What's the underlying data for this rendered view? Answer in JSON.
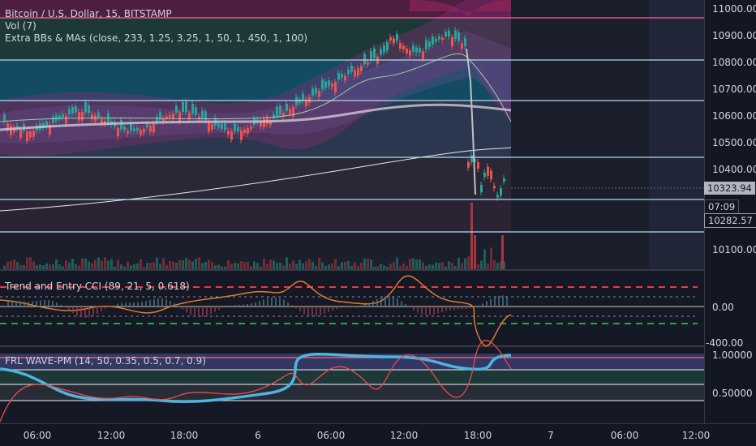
{
  "main": {
    "title": "Bitcoin / U.S. Dollar, 15, BITSTAMP",
    "vol_label": "Vol (7)",
    "indicator_label": "Extra BBs & MAs (close, 233, 1.25, 3.25, 1, 50, 1, 450, 1, 100)"
  },
  "price_axis": {
    "ticks": [
      "11000.00",
      "10900.00",
      "10800.00",
      "10700.00",
      "10600.00",
      "10500.00",
      "10400.00",
      "10100.00"
    ],
    "current_price": "10323.94",
    "countdown": "07:09",
    "alt_price": "10282.57"
  },
  "cci": {
    "label": "Trend and Entry CCI (89, 21, 5, 0.618)",
    "ticks": [
      "0.00",
      "-400.00"
    ]
  },
  "frl": {
    "label": "FRL WAVE-PM (14, 50, 0.35, 0.5, 0.7, 0.9)",
    "ticks": [
      "1.00000",
      "0.50000"
    ]
  },
  "time_axis": {
    "labels": [
      "06:00",
      "12:00",
      "18:00",
      "6",
      "06:00",
      "12:00",
      "18:00",
      "7",
      "06:00",
      "12:00"
    ]
  },
  "colors": {
    "background": "#131722",
    "candle_up": "#26a69a",
    "candle_down": "#ef5350",
    "badge_current": "#b2b5be",
    "cci_upper": "#f23645",
    "cci_lower": "#26a641",
    "wave_blue": "#4fb3e0",
    "wave_red": "#e84d4d"
  }
}
